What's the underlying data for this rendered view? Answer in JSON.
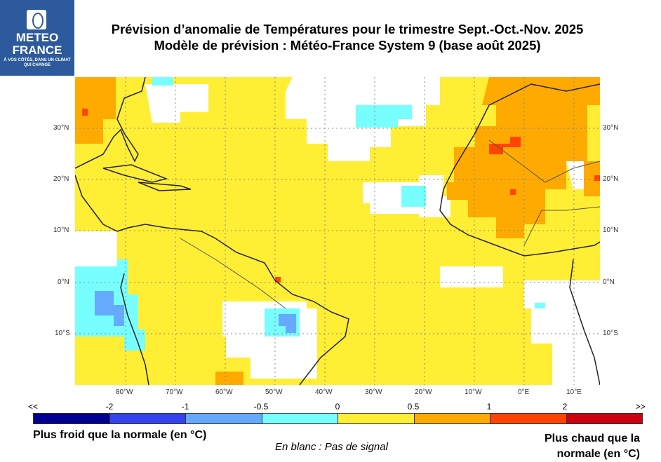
{
  "logo": {
    "name_line1": "METEO",
    "name_line2": "FRANCE",
    "tagline": "À VOS CÔTÉS, DANS UN CLIMAT QUI CHANGE"
  },
  "title": {
    "line1": "Prévision d’anomalie de Températures pour le trimestre Sept.-Oct.-Nov. 2025",
    "line2": "Modèle de prévision : Météo-France System 9 (base août 2025)"
  },
  "map": {
    "lat_labels": [
      "30°N",
      "20°N",
      "10°N",
      "0°N",
      "10°S"
    ],
    "lon_labels": [
      "80°W",
      "70°W",
      "60°W",
      "50°W",
      "40°W",
      "30°W",
      "20°W",
      "10°W",
      "0°E",
      "10°E"
    ]
  },
  "legend": {
    "ticks": [
      "<<",
      "-2",
      "-1",
      "-0.5",
      "0",
      "0.5",
      "1",
      "2",
      ">>"
    ],
    "colors": [
      "#000090",
      "#3344ee",
      "#66aaff",
      "#77ffff",
      "#ffee33",
      "#ffaa00",
      "#ff4400",
      "#cc0011"
    ],
    "cold_label": "Plus froid que la normale (en °C)",
    "warm_label": "Plus chaud que la normale (en °C)",
    "no_signal_label": "En blanc : Pas de signal"
  }
}
